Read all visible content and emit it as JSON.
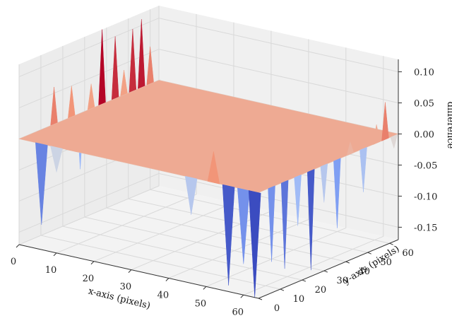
{
  "chart_data": {
    "type": "surface3d",
    "title": "",
    "xlabel": "x-axis (pixels)",
    "ylabel": "y-axis (pixels)",
    "zlabel": "difference",
    "x_ticks": [
      "0",
      "10",
      "20",
      "30",
      "40",
      "50",
      "60"
    ],
    "y_ticks": [
      "0",
      "10",
      "20",
      "30",
      "40",
      "50",
      "60"
    ],
    "z_ticks": [
      "-0.15",
      "-0.10",
      "-0.05",
      "0.00",
      "0.05",
      "0.10"
    ],
    "xlim": [
      0,
      64
    ],
    "ylim": [
      0,
      64
    ],
    "zlim": [
      -0.17,
      0.12
    ],
    "colormap": "coolwarm",
    "colormap_stops": [
      "#3b4cc0",
      "#8db0fe",
      "#dddddd",
      "#f49a7b",
      "#b40426"
    ],
    "surface_base": 0.0,
    "edge_spikes": [
      {
        "x": 0,
        "y": 10,
        "z": -0.11
      },
      {
        "x": 0,
        "y": 16,
        "z": 0.06
      },
      {
        "x": 0,
        "y": 20,
        "z": -0.03
      },
      {
        "x": 0,
        "y": 24,
        "z": 0.05
      },
      {
        "x": 0,
        "y": 28,
        "z": -0.09
      },
      {
        "x": 0,
        "y": 33,
        "z": 0.04
      },
      {
        "x": 0,
        "y": 38,
        "z": 0.12
      },
      {
        "x": 0,
        "y": 44,
        "z": 0.1
      },
      {
        "x": 0,
        "y": 48,
        "z": 0.04
      },
      {
        "x": 0,
        "y": 52,
        "z": 0.1
      },
      {
        "x": 0,
        "y": 56,
        "z": 0.11
      },
      {
        "x": 0,
        "y": 60,
        "z": 0.06
      },
      {
        "x": 0,
        "y": 63,
        "z": -0.03
      },
      {
        "x": 6,
        "y": 0,
        "z": -0.13
      },
      {
        "x": 10,
        "y": 0,
        "z": -0.04
      },
      {
        "x": 14,
        "y": 0,
        "z": 0.03
      },
      {
        "x": 46,
        "y": 0,
        "z": -0.06
      },
      {
        "x": 52,
        "y": 0,
        "z": 0.05
      },
      {
        "x": 56,
        "y": 0,
        "z": -0.16
      },
      {
        "x": 60,
        "y": 0,
        "z": -0.12
      },
      {
        "x": 63,
        "y": 0,
        "z": -0.17
      },
      {
        "x": 64,
        "y": 6,
        "z": -0.12
      },
      {
        "x": 64,
        "y": 12,
        "z": -0.14
      },
      {
        "x": 64,
        "y": 18,
        "z": -0.08
      },
      {
        "x": 64,
        "y": 24,
        "z": -0.16
      },
      {
        "x": 64,
        "y": 30,
        "z": -0.06
      },
      {
        "x": 64,
        "y": 36,
        "z": -0.11
      },
      {
        "x": 64,
        "y": 42,
        "z": 0.02
      },
      {
        "x": 64,
        "y": 48,
        "z": -0.07
      },
      {
        "x": 64,
        "y": 54,
        "z": 0.03
      },
      {
        "x": 64,
        "y": 58,
        "z": 0.06
      },
      {
        "x": 64,
        "y": 62,
        "z": -0.02
      }
    ]
  }
}
